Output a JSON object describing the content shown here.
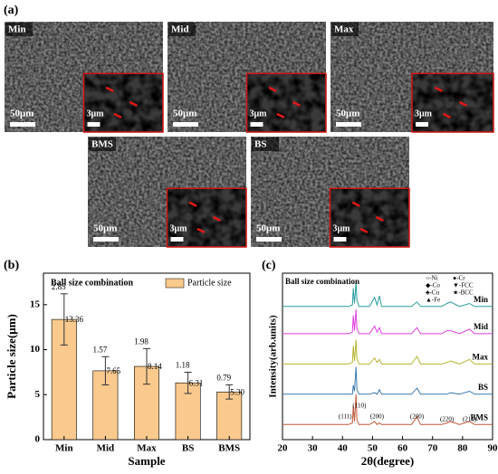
{
  "panel_a": {
    "label": "(a)",
    "images": [
      {
        "name": "Min",
        "scale": "50μm",
        "inset_scale": "3μm"
      },
      {
        "name": "Mid",
        "scale": "50μm",
        "inset_scale": "3μm"
      },
      {
        "name": "Max",
        "scale": "50μm",
        "inset_scale": "3μm"
      },
      {
        "name": "BMS",
        "scale": "50μm",
        "inset_scale": "3μm"
      },
      {
        "name": "BS",
        "scale": "50μm",
        "inset_scale": "3μm"
      }
    ]
  },
  "chart_data": [
    {
      "type": "bar",
      "panel": "(b)",
      "title": "Ball size combination",
      "legend": "Particle size",
      "color": "#f9c98e",
      "xlabel": "Sample",
      "ylabel": "Particle size(μm)",
      "categories": [
        "Min",
        "Mid",
        "Max",
        "BS",
        "BMS"
      ],
      "values": [
        13.36,
        7.65,
        8.14,
        6.31,
        5.3
      ],
      "value_labels": [
        "13.36",
        "7.65",
        "8.14",
        "6.31",
        "5.30"
      ],
      "errors": [
        2.85,
        1.57,
        1.98,
        1.18,
        0.79
      ],
      "ylim": [
        0,
        18.5
      ],
      "yticks": [
        0,
        5,
        10,
        15
      ]
    },
    {
      "type": "line",
      "panel": "(c)",
      "title": "Ball size combination",
      "xlabel": "2θ(degree)",
      "ylabel": "Intensity(arb.units)",
      "legend_items": [
        "○-Ni",
        "●-Cr",
        "◆-Co",
        "▼-FCC",
        "♣-Cu",
        "★-BCC",
        "▲-Fe"
      ],
      "annotations": [
        "(111)",
        "(110)",
        "(200)",
        "(200)",
        "(220)",
        "(211)"
      ],
      "xlim": [
        20,
        90
      ],
      "xticks": [
        20,
        30,
        40,
        50,
        60,
        70,
        80,
        90
      ],
      "ylim": [
        0,
        110
      ],
      "x": [
        20,
        38,
        42,
        43.3,
        43.6,
        44,
        44.5,
        44.8,
        45.5,
        49,
        50.7,
        51.5,
        52.3,
        53,
        63,
        64.8,
        66,
        73,
        74.8,
        76,
        79,
        82.3,
        84,
        90
      ],
      "series": [
        {
          "name": "Min",
          "color": "#2a9c9c",
          "values": [
            88,
            88,
            88,
            89,
            100,
            90,
            104,
            92,
            88,
            88,
            94,
            89,
            95,
            88,
            88,
            91,
            88,
            88,
            90,
            91,
            88,
            90,
            88,
            88
          ]
        },
        {
          "name": "Mid",
          "color": "#e040e0",
          "values": [
            70,
            70,
            70,
            71,
            82,
            72,
            86,
            73,
            70,
            70,
            75,
            71,
            74,
            70,
            70,
            74,
            70,
            70,
            72,
            72,
            70,
            73,
            70,
            70
          ]
        },
        {
          "name": "Max",
          "color": "#b5b532",
          "values": [
            50,
            50,
            50,
            51,
            62,
            52,
            66,
            53,
            50,
            50,
            54,
            51,
            53,
            50,
            50,
            55,
            50,
            50,
            51,
            52,
            50,
            53,
            50,
            50
          ]
        },
        {
          "name": "BS",
          "color": "#3a78b0",
          "values": [
            30,
            30,
            30,
            30,
            36,
            32,
            48,
            33,
            30,
            30,
            31,
            30,
            33,
            30,
            30,
            34,
            30,
            30,
            30,
            31,
            30,
            32,
            30,
            30
          ]
        },
        {
          "name": "BMS",
          "color": "#c0573a",
          "values": [
            10,
            10,
            10,
            11,
            22,
            12,
            30,
            13,
            10,
            10,
            12,
            10,
            11,
            10,
            10,
            15,
            10,
            10,
            11,
            12,
            10,
            12,
            10,
            10
          ]
        }
      ]
    }
  ]
}
